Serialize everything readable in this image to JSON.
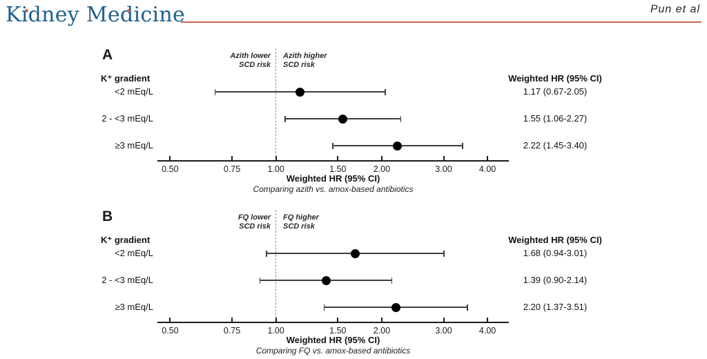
{
  "header": {
    "journal_logo": "Kidney Medicine",
    "attribution": "Pun et al"
  },
  "colors": {
    "accent": "#c2664d",
    "logo-blue": "#1f5f8e",
    "point": "#000000",
    "whisker": "#3d3d3d",
    "ref-line": "#8f8f8f"
  },
  "chart_data": [
    {
      "type": "scatter",
      "subtype": "forest-plot",
      "panel": "A",
      "group_label": "K⁺ gradient",
      "column_header": "Weighted HR (95% CI)",
      "direction_labels": {
        "left": [
          "Azith lower",
          "SCD risk"
        ],
        "right": [
          "Azith higher",
          "SCD risk"
        ]
      },
      "xlabel": "Weighted HR (95% CI)",
      "caption": "Comparing azith vs. amox-based antibiotics",
      "x_scale": "log",
      "xlim": [
        0.46,
        4.6
      ],
      "reference_line": 1.0,
      "x_ticks": [
        0.5,
        0.75,
        1.0,
        1.5,
        2.0,
        3.0,
        4.0
      ],
      "tick_labels": [
        "0.50",
        "0.75",
        "1.00",
        "1.50",
        "2.00",
        "3.00",
        "4.00"
      ],
      "rows": [
        {
          "label": "<2 mEq/L",
          "hr": 1.17,
          "lo": 0.67,
          "hi": 2.05,
          "text": "1.17 (0.67-2.05)"
        },
        {
          "label": "2 - <3 mEq/L",
          "hr": 1.55,
          "lo": 1.06,
          "hi": 2.27,
          "text": "1.55 (1.06-2.27)"
        },
        {
          "label": "≥3 mEq/L",
          "hr": 2.22,
          "lo": 1.45,
          "hi": 3.4,
          "text": "2.22 (1.45-3.40)"
        }
      ]
    },
    {
      "type": "scatter",
      "subtype": "forest-plot",
      "panel": "B",
      "group_label": "K⁺ gradient",
      "column_header": "Weighted HR (95% CI)",
      "direction_labels": {
        "left": [
          "FQ lower",
          "SCD risk"
        ],
        "right": [
          "FQ higher",
          "SCD risk"
        ]
      },
      "xlabel": "Weighted HR (95% CI)",
      "caption": "Comparing FQ vs. amox-based antibiotics",
      "x_scale": "log",
      "xlim": [
        0.46,
        4.6
      ],
      "reference_line": 1.0,
      "x_ticks": [
        0.5,
        0.75,
        1.0,
        1.5,
        2.0,
        3.0,
        4.0
      ],
      "tick_labels": [
        "0.50",
        "0.75",
        "1.00",
        "1.50",
        "2.00",
        "3.00",
        "4.00"
      ],
      "rows": [
        {
          "label": "<2 mEq/L",
          "hr": 1.68,
          "lo": 0.94,
          "hi": 3.01,
          "text": "1.68 (0.94-3.01)"
        },
        {
          "label": "2 - <3 mEq/L",
          "hr": 1.39,
          "lo": 0.9,
          "hi": 2.14,
          "text": "1.39 (0.90-2.14)"
        },
        {
          "label": "≥3 mEq/L",
          "hr": 2.2,
          "lo": 1.37,
          "hi": 3.51,
          "text": "2.20 (1.37-3.51)"
        }
      ]
    }
  ]
}
